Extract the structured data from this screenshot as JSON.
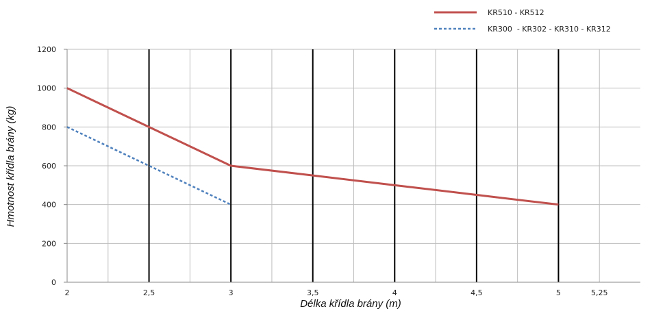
{
  "chart_data": {
    "type": "line",
    "xlabel": "Délka křídla brány (m)",
    "ylabel": "Hmotnost křídla brány (kg)",
    "xlim": [
      2,
      5.5
    ],
    "ylim": [
      0,
      1200
    ],
    "x_ticks": [
      2,
      2.5,
      3,
      3.5,
      4,
      4.5,
      5,
      5.25
    ],
    "x_tick_labels": [
      "2",
      "2,5",
      "3",
      "3,5",
      "4",
      "4,5",
      "5",
      "5,25"
    ],
    "y_ticks": [
      0,
      200,
      400,
      600,
      800,
      1000,
      1200
    ],
    "y_tick_labels": [
      "0",
      "200",
      "400",
      "600",
      "800",
      "1000",
      "1200"
    ],
    "grid": true,
    "legend_position": "top-right",
    "series": [
      {
        "name": "KR510 - KR512",
        "color": "#c0504d",
        "style": "solid",
        "x": [
          2,
          2.5,
          3,
          3.5,
          4,
          4.5,
          5
        ],
        "y": [
          1000,
          800,
          600,
          550,
          500,
          450,
          400
        ]
      },
      {
        "name": "KR300  - KR302 - KR310 - KR312",
        "color": "#4f81bd",
        "style": "dashed",
        "x": [
          2,
          2.5,
          3
        ],
        "y": [
          800,
          600,
          400
        ]
      }
    ]
  }
}
